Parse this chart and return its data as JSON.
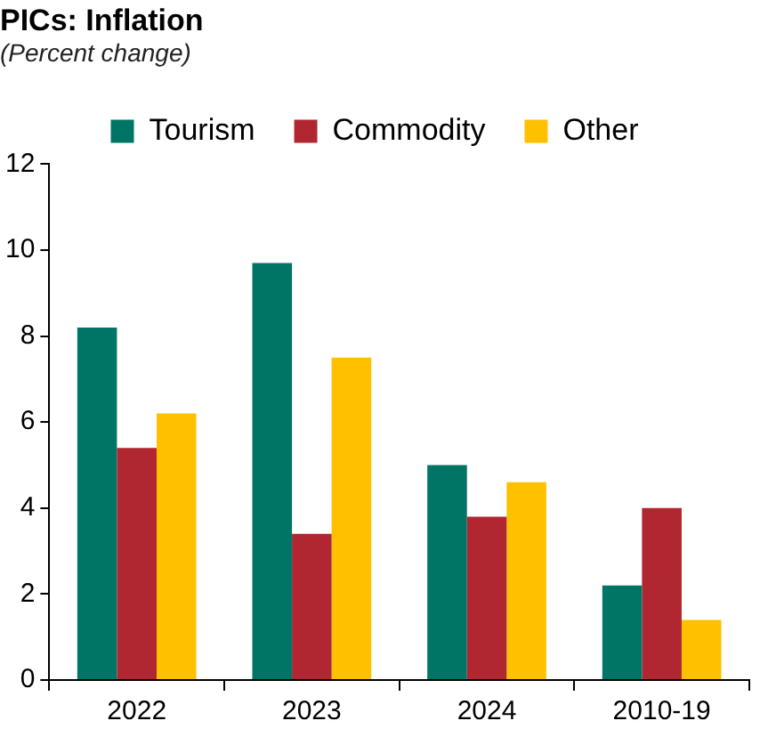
{
  "chart_data": {
    "type": "bar",
    "title": "PICs: Inflation",
    "subtitle": "(Percent change)",
    "categories": [
      "2022",
      "2023",
      "2024",
      "2010-19"
    ],
    "series": [
      {
        "name": "Tourism",
        "color": "#007566",
        "values": [
          8.2,
          9.7,
          5.0,
          2.2
        ]
      },
      {
        "name": "Commodity",
        "color": "#b02732",
        "values": [
          5.4,
          3.4,
          3.8,
          4.0
        ]
      },
      {
        "name": "Other",
        "color": "#ffc000",
        "values": [
          6.2,
          7.5,
          4.6,
          1.4
        ]
      }
    ],
    "ylim": [
      0,
      12
    ],
    "yticks": [
      0,
      2,
      4,
      6,
      8,
      10,
      12
    ],
    "grid": false,
    "legend": "top"
  }
}
